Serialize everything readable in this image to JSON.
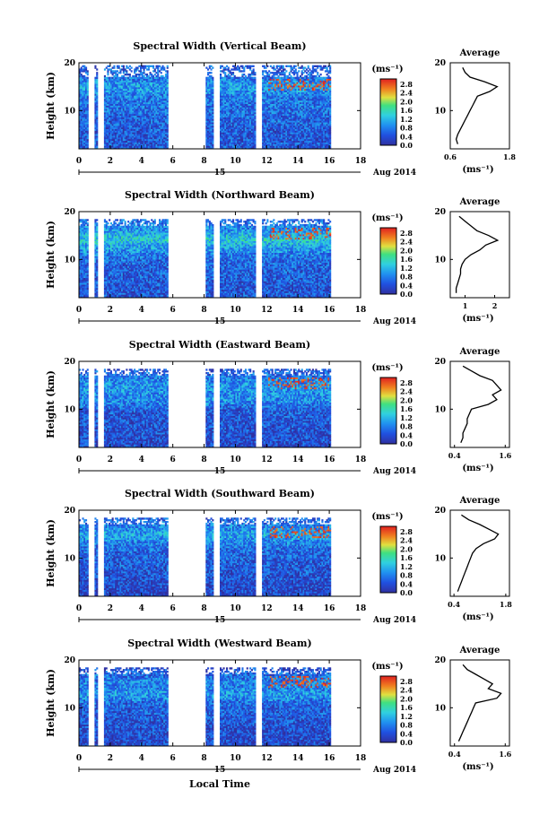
{
  "figure": {
    "xlabel": "Local Time",
    "date_suffix": "Aug 2014",
    "day_label": "15",
    "ylabel": "Height (km)",
    "avg_title": "Average",
    "unit": "(ms⁻¹)",
    "colorbar_ticks": [
      "2.8",
      "2.4",
      "2.0",
      "1.6",
      "1.2",
      "0.8",
      "0.4",
      "0.0"
    ],
    "colors": {
      "colormap_low": "#2c2c8c",
      "colormap_mid": "#30c0e0",
      "colormap_high": "#e02020",
      "background": "#ffffff"
    }
  },
  "chart_data": [
    {
      "type": "heatmap",
      "title": "Spectral Width (Vertical Beam)",
      "xlabel": "Local Time",
      "ylabel": "Height (km)",
      "xlim": [
        0,
        18
      ],
      "ylim": [
        2,
        20
      ],
      "xticks": [
        "0",
        "2",
        "4",
        "6",
        "8",
        "10",
        "12",
        "14",
        "16",
        "18"
      ],
      "yticks": [
        "10",
        "20"
      ],
      "colorbar_label": "(ms⁻¹)",
      "colorbar_range": [
        0.0,
        2.8
      ],
      "data_gaps_hours": [
        [
          0.6,
          0.9
        ],
        [
          1.2,
          1.6
        ],
        [
          5.6,
          8.0
        ],
        [
          8.5,
          8.9
        ],
        [
          11.2,
          11.6
        ],
        [
          16.0,
          18.0
        ]
      ],
      "average_profile": {
        "xlabel": "(ms⁻¹)",
        "xlim": [
          0.6,
          1.8
        ],
        "xticks": [
          "0.6",
          "1.8"
        ],
        "yticks": [
          "10",
          "20"
        ],
        "height_km": [
          3,
          4,
          5,
          6,
          7,
          8,
          9,
          10,
          11,
          12,
          13,
          14,
          15,
          16,
          17,
          18,
          19
        ],
        "width_ms": [
          0.75,
          0.72,
          0.75,
          0.8,
          0.85,
          0.9,
          0.95,
          1.0,
          1.05,
          1.1,
          1.15,
          1.4,
          1.55,
          1.3,
          1.0,
          0.9,
          0.85
        ]
      }
    },
    {
      "type": "heatmap",
      "title": "Spectral Width (Northward Beam)",
      "xlabel": "Local Time",
      "ylabel": "Height (km)",
      "xlim": [
        0,
        18
      ],
      "ylim": [
        2,
        20
      ],
      "xticks": [
        "0",
        "2",
        "4",
        "6",
        "8",
        "10",
        "12",
        "14",
        "16",
        "18"
      ],
      "yticks": [
        "10",
        "20"
      ],
      "colorbar_label": "(ms⁻¹)",
      "colorbar_range": [
        0.0,
        2.8
      ],
      "data_gaps_hours": [
        [
          0.6,
          0.9
        ],
        [
          1.2,
          1.6
        ],
        [
          5.6,
          8.0
        ],
        [
          8.5,
          8.9
        ],
        [
          11.2,
          11.6
        ],
        [
          16.0,
          18.0
        ]
      ],
      "average_profile": {
        "xlabel": "(ms⁻¹)",
        "xlim": [
          0.5,
          2.5
        ],
        "xticks": [
          "1",
          "2"
        ],
        "yticks": [
          "10",
          "20"
        ],
        "height_km": [
          3,
          4,
          5,
          6,
          7,
          8,
          9,
          10,
          11,
          12,
          13,
          14,
          15,
          16,
          17,
          18,
          19
        ],
        "width_ms": [
          0.7,
          0.7,
          0.75,
          0.8,
          0.85,
          0.85,
          0.9,
          1.0,
          1.2,
          1.5,
          1.7,
          2.1,
          1.8,
          1.4,
          1.2,
          1.0,
          0.8
        ]
      }
    },
    {
      "type": "heatmap",
      "title": "Spectral Width (Eastward Beam)",
      "xlabel": "Local Time",
      "ylabel": "Height (km)",
      "xlim": [
        0,
        18
      ],
      "ylim": [
        2,
        20
      ],
      "xticks": [
        "0",
        "2",
        "4",
        "6",
        "8",
        "10",
        "12",
        "14",
        "16",
        "18"
      ],
      "yticks": [
        "10",
        "20"
      ],
      "colorbar_label": "(ms⁻¹)",
      "colorbar_range": [
        0.0,
        2.8
      ],
      "data_gaps_hours": [
        [
          0.6,
          0.9
        ],
        [
          1.2,
          1.6
        ],
        [
          5.6,
          8.0
        ],
        [
          8.5,
          8.9
        ],
        [
          11.2,
          11.6
        ],
        [
          16.0,
          18.0
        ]
      ],
      "average_profile": {
        "xlabel": "(ms⁻¹)",
        "xlim": [
          0.3,
          1.7
        ],
        "xticks": [
          "0.4",
          "1.6"
        ],
        "yticks": [
          "10",
          "20"
        ],
        "height_km": [
          3,
          4,
          5,
          6,
          7,
          8,
          9,
          10,
          11,
          12,
          13,
          14,
          15,
          16,
          17,
          18,
          19
        ],
        "width_ms": [
          0.55,
          0.6,
          0.6,
          0.65,
          0.7,
          0.7,
          0.75,
          0.8,
          1.2,
          1.4,
          1.3,
          1.5,
          1.4,
          1.3,
          1.0,
          0.8,
          0.6
        ]
      }
    },
    {
      "type": "heatmap",
      "title": "Spectral Width (Southward Beam)",
      "xlabel": "Local Time",
      "ylabel": "Height (km)",
      "xlim": [
        0,
        18
      ],
      "ylim": [
        2,
        20
      ],
      "xticks": [
        "0",
        "2",
        "4",
        "6",
        "8",
        "10",
        "12",
        "14",
        "16",
        "18"
      ],
      "yticks": [
        "10",
        "20"
      ],
      "colorbar_label": "(ms⁻¹)",
      "colorbar_range": [
        0.0,
        2.8
      ],
      "data_gaps_hours": [
        [
          0.6,
          0.9
        ],
        [
          1.2,
          1.6
        ],
        [
          5.6,
          8.0
        ],
        [
          8.5,
          8.9
        ],
        [
          11.2,
          11.6
        ],
        [
          16.0,
          18.0
        ]
      ],
      "average_profile": {
        "xlabel": "(ms⁻¹)",
        "xlim": [
          0.3,
          1.9
        ],
        "xticks": [
          "0.4",
          "1.8"
        ],
        "yticks": [
          "10",
          "20"
        ],
        "height_km": [
          3,
          4,
          5,
          6,
          7,
          8,
          9,
          10,
          11,
          12,
          13,
          14,
          15,
          16,
          17,
          18,
          19
        ],
        "width_ms": [
          0.5,
          0.55,
          0.6,
          0.65,
          0.7,
          0.75,
          0.8,
          0.85,
          0.9,
          1.0,
          1.2,
          1.5,
          1.6,
          1.35,
          1.1,
          0.8,
          0.6
        ]
      }
    },
    {
      "type": "heatmap",
      "title": "Spectral Width (Westward Beam)",
      "xlabel": "Local Time",
      "ylabel": "Height (km)",
      "xlim": [
        0,
        18
      ],
      "ylim": [
        2,
        20
      ],
      "xticks": [
        "0",
        "2",
        "4",
        "6",
        "8",
        "10",
        "12",
        "14",
        "16",
        "18"
      ],
      "yticks": [
        "10",
        "20"
      ],
      "colorbar_label": "(ms⁻¹)",
      "colorbar_range": [
        0.0,
        2.8
      ],
      "data_gaps_hours": [
        [
          0.6,
          0.9
        ],
        [
          1.2,
          1.6
        ],
        [
          5.6,
          8.0
        ],
        [
          8.5,
          8.9
        ],
        [
          11.2,
          11.6
        ],
        [
          16.0,
          18.0
        ]
      ],
      "average_profile": {
        "xlabel": "(ms⁻¹)",
        "xlim": [
          0.3,
          1.7
        ],
        "xticks": [
          "0.4",
          "1.6"
        ],
        "yticks": [
          "10",
          "20"
        ],
        "height_km": [
          3,
          4,
          5,
          6,
          7,
          8,
          9,
          10,
          11,
          12,
          13,
          14,
          15,
          16,
          17,
          18,
          19
        ],
        "width_ms": [
          0.5,
          0.55,
          0.6,
          0.65,
          0.7,
          0.75,
          0.8,
          0.85,
          0.9,
          1.4,
          1.5,
          1.2,
          1.3,
          1.1,
          0.9,
          0.7,
          0.6
        ]
      }
    }
  ]
}
